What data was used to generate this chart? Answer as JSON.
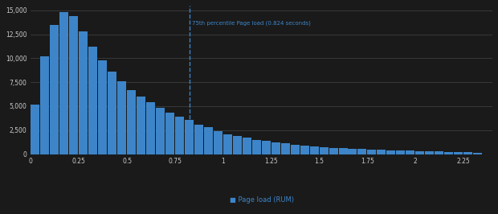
{
  "background_color": "#1a1a1a",
  "bar_color": "#3d85c8",
  "dashed_line_color": "#3d85c8",
  "annotation_color": "#3d85c8",
  "grid_color": "#444444",
  "text_color": "#cccccc",
  "percentile_75": 0.824,
  "annotation_text": "75th percentile Page load (0.824 seconds)",
  "legend_label": "Page load (RUM)",
  "ylim_max": 15500,
  "yticks": [
    0,
    2500,
    5000,
    7500,
    10000,
    12500,
    15000
  ],
  "bin_left_edges": [
    0.0,
    0.05,
    0.1,
    0.15,
    0.2,
    0.25,
    0.3,
    0.35,
    0.4,
    0.45,
    0.5,
    0.55,
    0.6,
    0.65,
    0.7,
    0.75,
    0.8,
    0.85,
    0.9,
    0.95,
    1.0,
    1.05,
    1.1,
    1.15,
    1.2,
    1.25,
    1.3,
    1.35,
    1.4,
    1.45,
    1.5,
    1.55,
    1.6,
    1.65,
    1.7,
    1.75,
    1.8,
    1.85,
    1.9,
    1.95,
    2.0,
    2.05,
    2.1,
    2.15,
    2.2,
    2.25,
    2.3
  ],
  "bar_heights": [
    5200,
    10200,
    13500,
    14800,
    14400,
    12800,
    11200,
    9800,
    8600,
    7600,
    6700,
    6000,
    5400,
    4800,
    4300,
    3900,
    3600,
    3100,
    2800,
    2400,
    2100,
    1900,
    1700,
    1500,
    1350,
    1200,
    1100,
    1000,
    900,
    820,
    740,
    670,
    610,
    560,
    510,
    470,
    430,
    395,
    365,
    340,
    315,
    290,
    270,
    250,
    235,
    220,
    100
  ],
  "bin_width": 0.05,
  "xlim_max": 2.4,
  "xtick_positions": [
    0.0,
    0.25,
    0.5,
    0.75,
    1.0,
    1.25,
    1.5,
    1.75,
    2.0,
    2.25
  ],
  "xtick_labels": [
    "0",
    "0.25",
    "0.5",
    "0.75",
    "1",
    "1.25",
    "1.5",
    "1.75",
    "2",
    "2.25"
  ]
}
